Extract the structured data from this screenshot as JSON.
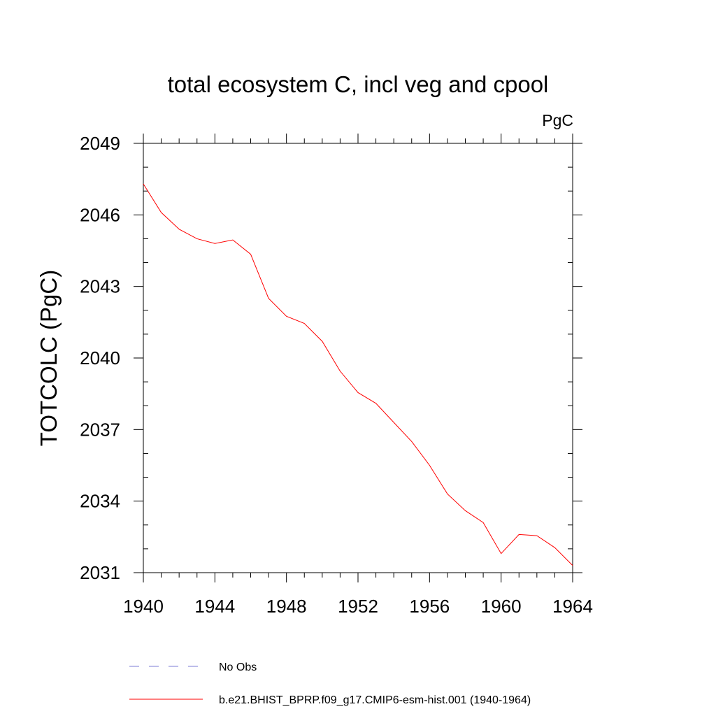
{
  "chart_data": {
    "type": "line",
    "title": "total ecosystem C, incl veg and cpool",
    "units": "PgC",
    "ylabel": "TOTCOLC  (PgC)",
    "xlabel": "",
    "xlim": [
      1940,
      1964
    ],
    "ylim": [
      2031,
      2049
    ],
    "x_ticks": [
      1940,
      1944,
      1948,
      1952,
      1956,
      1960,
      1964
    ],
    "y_ticks": [
      2031,
      2034,
      2037,
      2040,
      2043,
      2046,
      2049
    ],
    "grid": false,
    "legend_position": "bottom",
    "legend": [
      {
        "label": "No Obs",
        "color": "#7b7bd6",
        "style": "dashed"
      },
      {
        "label": "b.e21.BHIST_BPRP.f09_g17.CMIP6-esm-hist.001 (1940-1964)",
        "color": "#ff0000",
        "style": "solid"
      }
    ],
    "series": [
      {
        "name": "b.e21.BHIST_BPRP.f09_g17.CMIP6-esm-hist.001 (1940-1964)",
        "color": "#ff0000",
        "x": [
          1940,
          1941,
          1942,
          1943,
          1944,
          1945,
          1946,
          1947,
          1948,
          1949,
          1950,
          1951,
          1952,
          1953,
          1954,
          1955,
          1956,
          1957,
          1958,
          1959,
          1960,
          1961,
          1962,
          1963,
          1964
        ],
        "values": [
          2047.3,
          2046.1,
          2045.4,
          2045.0,
          2044.8,
          2044.95,
          2044.35,
          2042.5,
          2041.75,
          2041.45,
          2040.7,
          2039.45,
          2038.55,
          2038.1,
          2037.3,
          2036.5,
          2035.5,
          2034.3,
          2033.6,
          2033.1,
          2031.8,
          2032.6,
          2032.55,
          2032.05,
          2031.3
        ]
      }
    ]
  }
}
